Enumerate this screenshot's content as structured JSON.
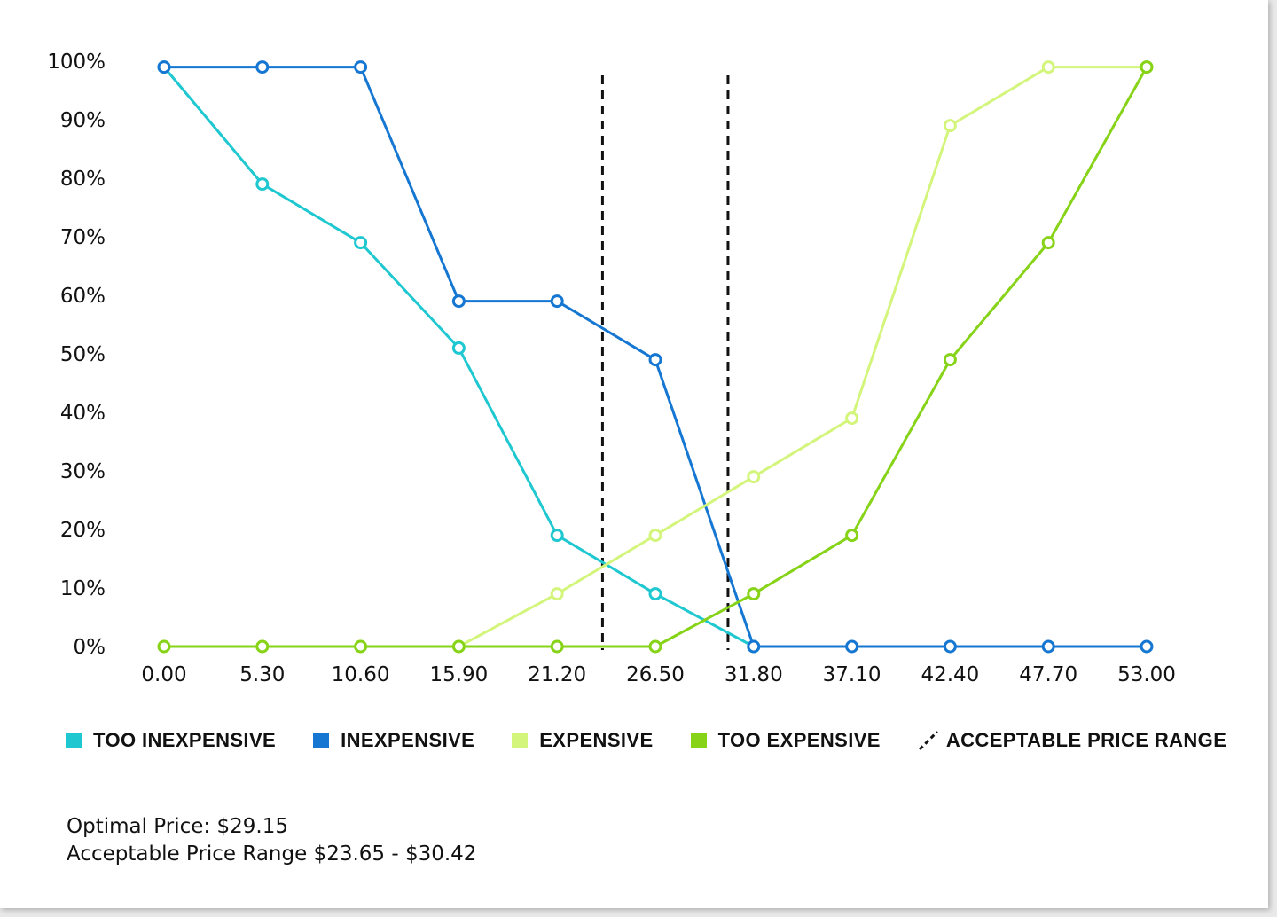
{
  "chart_data": {
    "type": "line",
    "title": "",
    "xlabel": "",
    "ylabel": "",
    "x": [
      0.0,
      5.3,
      10.6,
      15.9,
      21.2,
      26.5,
      31.8,
      37.1,
      42.4,
      47.7,
      53.0
    ],
    "x_tick_labels": [
      "0.00",
      "5.30",
      "10.60",
      "15.90",
      "21.20",
      "26.50",
      "31.80",
      "37.10",
      "42.40",
      "47.70",
      "53.00"
    ],
    "y_tick_labels": [
      "0%",
      "10%",
      "20%",
      "30%",
      "40%",
      "50%",
      "60%",
      "70%",
      "80%",
      "90%",
      "100%"
    ],
    "ylim": [
      0,
      100
    ],
    "series": [
      {
        "name": "TOO INEXPENSIVE",
        "color": "#1fc8d0",
        "values": [
          99,
          79,
          69,
          51,
          19,
          9,
          0,
          null,
          null,
          null,
          null
        ]
      },
      {
        "name": "INEXPENSIVE",
        "color": "#1677d2",
        "values": [
          99,
          99,
          99,
          59,
          59,
          49,
          0,
          0,
          0,
          0,
          0
        ]
      },
      {
        "name": "EXPENSIVE",
        "color": "#d3f57c",
        "values": [
          0,
          0,
          0,
          0,
          9,
          19,
          29,
          39,
          89,
          99,
          99
        ]
      },
      {
        "name": "TOO EXPENSIVE",
        "color": "#86d318",
        "values": [
          0,
          0,
          0,
          0,
          0,
          0,
          9,
          19,
          49,
          69,
          99
        ]
      }
    ],
    "reference_lines": [
      {
        "name": "ACCEPTABLE PRICE RANGE",
        "style": "dashed",
        "color": "#111111",
        "x": [
          23.65,
          30.42
        ]
      }
    ],
    "legend": [
      {
        "label": "TOO INEXPENSIVE",
        "color": "#1fc8d0",
        "kind": "square"
      },
      {
        "label": "INEXPENSIVE",
        "color": "#1677d2",
        "kind": "square"
      },
      {
        "label": "EXPENSIVE",
        "color": "#d3f57c",
        "kind": "square"
      },
      {
        "label": "TOO EXPENSIVE",
        "color": "#86d318",
        "kind": "square"
      },
      {
        "label": "ACCEPTABLE PRICE RANGE",
        "color": "#111111",
        "kind": "dashed-line"
      }
    ],
    "legend_position": "bottom",
    "grid": false
  },
  "summary": {
    "optimal_price": "Optimal Price: $29.15",
    "acceptable_range": "Acceptable Price Range $23.65 - $30.42"
  }
}
